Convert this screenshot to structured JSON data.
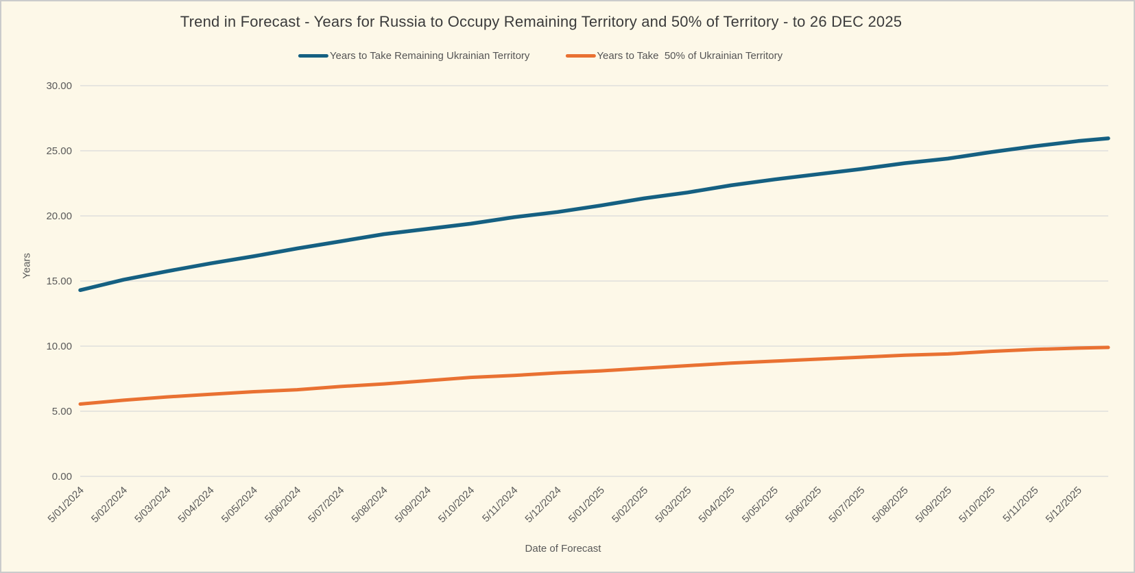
{
  "frame": {
    "background": "#FDF8E8",
    "border_color": "#CBCBCB"
  },
  "chart_data": {
    "type": "line",
    "title": "Trend in Forecast - Years for Russia to Occupy Remaining Territory and 50% of Territory - to 26 DEC 2025",
    "xlabel": "Date of Forecast",
    "ylabel": "Years",
    "ylim": [
      0,
      30
    ],
    "y_tick_labels": [
      "0.00",
      "5.00",
      "10.00",
      "15.00",
      "20.00",
      "25.00",
      "30.00"
    ],
    "grid": true,
    "gridline_color": "#D9D9D9",
    "axis_text_color": "#595959",
    "title_color": "#3B3B3B",
    "legend_position": "top",
    "x_tick_rotation_deg": -45,
    "categories": [
      "5/01/2024",
      "5/02/2024",
      "5/03/2024",
      "5/04/2024",
      "5/05/2024",
      "5/06/2024",
      "5/07/2024",
      "5/08/2024",
      "5/09/2024",
      "5/10/2024",
      "5/11/2024",
      "5/12/2024",
      "5/01/2025",
      "5/02/2025",
      "5/03/2025",
      "5/04/2025",
      "5/05/2025",
      "5/06/2025",
      "5/07/2025",
      "5/08/2025",
      "5/09/2025",
      "5/10/2025",
      "5/11/2025",
      "5/12/2025"
    ],
    "final_point_label": "26 DEC 2025",
    "series": [
      {
        "name": "Years to Take Remaining Ukrainian Territory",
        "color": "#156082",
        "values": [
          14.3,
          15.1,
          15.75,
          16.35,
          16.9,
          17.5,
          18.05,
          18.6,
          19.0,
          19.4,
          19.9,
          20.3,
          20.8,
          21.35,
          21.8,
          22.35,
          22.8,
          23.2,
          23.6,
          24.05,
          24.4,
          24.9,
          25.35,
          25.75,
          25.95
        ]
      },
      {
        "name": "Years to Take  50% of Ukrainian Territory",
        "color": "#E97132",
        "values": [
          5.55,
          5.85,
          6.1,
          6.3,
          6.5,
          6.65,
          6.9,
          7.1,
          7.35,
          7.6,
          7.75,
          7.95,
          8.1,
          8.3,
          8.5,
          8.7,
          8.85,
          9.0,
          9.15,
          9.3,
          9.4,
          9.6,
          9.75,
          9.85,
          9.9
        ]
      }
    ]
  }
}
